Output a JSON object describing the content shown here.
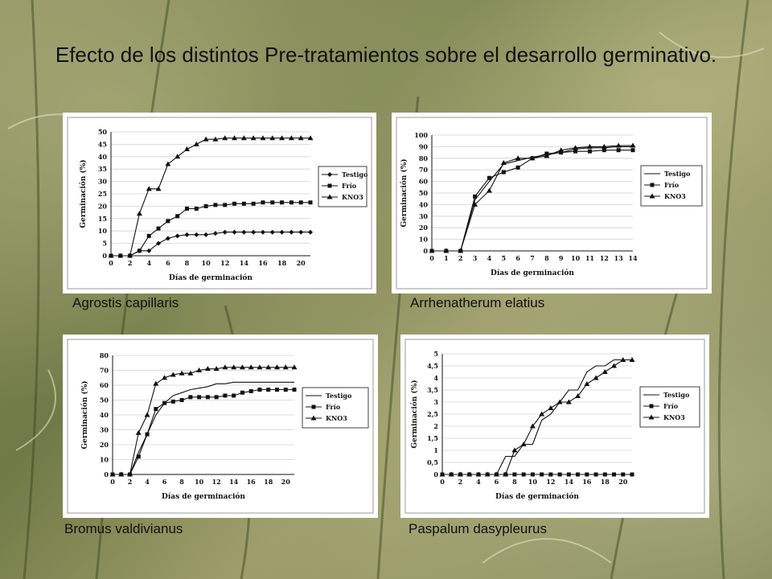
{
  "title": "Efecto de los distintos Pre-tratamientos sobre el desarrollo germinativo.",
  "colors": {
    "ink": "#111111",
    "grid": "#d0d0d0"
  },
  "chart_data": [
    {
      "type": "line",
      "caption": "Agrostis capillaris",
      "xlabel": "Días de germinación",
      "ylabel": "Germinación (%)",
      "xlim": [
        0,
        21
      ],
      "ylim": [
        0,
        50
      ],
      "xticks": [
        "0",
        "2",
        "4",
        "6",
        "8",
        "10",
        "12",
        "14",
        "16",
        "18",
        "20"
      ],
      "xtick_values": [
        0,
        2,
        4,
        6,
        8,
        10,
        12,
        14,
        16,
        18,
        20
      ],
      "yticks": [
        "0",
        "5",
        "10",
        "15",
        "20",
        "25",
        "30",
        "35",
        "40",
        "45",
        "50"
      ],
      "ytick_values": [
        0,
        5,
        10,
        15,
        20,
        25,
        30,
        35,
        40,
        45,
        50
      ],
      "grid": true,
      "legend": "right",
      "series": [
        {
          "name": "Testigo",
          "marker": "diamond",
          "x": [
            0,
            1,
            2,
            3,
            4,
            5,
            6,
            7,
            8,
            9,
            10,
            11,
            12,
            13,
            14,
            15,
            16,
            17,
            18,
            19,
            20,
            21
          ],
          "y": [
            0,
            0,
            0,
            2,
            2,
            5,
            7,
            8,
            8.5,
            8.5,
            8.5,
            9,
            9.5,
            9.5,
            9.5,
            9.5,
            9.5,
            9.5,
            9.5,
            9.5,
            9.5,
            9.5
          ]
        },
        {
          "name": "Frío",
          "marker": "square",
          "x": [
            0,
            1,
            2,
            3,
            4,
            5,
            6,
            7,
            8,
            9,
            10,
            11,
            12,
            13,
            14,
            15,
            16,
            17,
            18,
            19,
            20,
            21
          ],
          "y": [
            0,
            0,
            0,
            2,
            8,
            11,
            14,
            16,
            19,
            19,
            20,
            20.5,
            20.5,
            21,
            21,
            21,
            21.5,
            21.5,
            21.5,
            21.5,
            21.5,
            21.5
          ]
        },
        {
          "name": "KNO3",
          "marker": "triangle",
          "x": [
            0,
            1,
            2,
            3,
            4,
            5,
            6,
            7,
            8,
            9,
            10,
            11,
            12,
            13,
            14,
            15,
            16,
            17,
            18,
            19,
            20,
            21
          ],
          "y": [
            0,
            0,
            0,
            17,
            27,
            27,
            37,
            40,
            43,
            45,
            47,
            47,
            47.5,
            47.5,
            47.5,
            47.5,
            47.5,
            47.5,
            47.5,
            47.5,
            47.5,
            47.5
          ]
        }
      ]
    },
    {
      "type": "line",
      "caption": "Arrhenatherum elatius",
      "xlabel": "Días de germinación",
      "ylabel": "Germinación (%)",
      "xlim": [
        0,
        14
      ],
      "ylim": [
        0,
        100
      ],
      "xticks": [
        "0",
        "1",
        "2",
        "3",
        "4",
        "5",
        "6",
        "7",
        "8",
        "9",
        "10",
        "11",
        "12",
        "13",
        "14"
      ],
      "xtick_values": [
        0,
        1,
        2,
        3,
        4,
        5,
        6,
        7,
        8,
        9,
        10,
        11,
        12,
        13,
        14
      ],
      "yticks": [
        "0",
        "10",
        "20",
        "30",
        "40",
        "50",
        "60",
        "70",
        "80",
        "90",
        "100"
      ],
      "ytick_values": [
        0,
        10,
        20,
        30,
        40,
        50,
        60,
        70,
        80,
        90,
        100
      ],
      "grid": true,
      "legend": "right",
      "series": [
        {
          "name": "Testigo",
          "marker": "none",
          "x": [
            0,
            1,
            2,
            3,
            4,
            5,
            6,
            7,
            8,
            9,
            10,
            11,
            12,
            13,
            14
          ],
          "y": [
            0,
            0,
            0,
            44,
            60,
            75,
            78,
            81,
            83,
            85,
            88,
            89,
            89,
            90,
            90
          ]
        },
        {
          "name": "Frío",
          "marker": "square",
          "x": [
            0,
            1,
            2,
            3,
            4,
            5,
            6,
            7,
            8,
            9,
            10,
            11,
            12,
            13,
            14
          ],
          "y": [
            0,
            0,
            0,
            47,
            63,
            68,
            72,
            80,
            84,
            85,
            86,
            86,
            87,
            87,
            87
          ]
        },
        {
          "name": "KNO3",
          "marker": "triangle",
          "x": [
            0,
            1,
            2,
            3,
            4,
            5,
            6,
            7,
            8,
            9,
            10,
            11,
            12,
            13,
            14
          ],
          "y": [
            0,
            0,
            0,
            40,
            52,
            76,
            80,
            80,
            82,
            87,
            89,
            90,
            90,
            91,
            91
          ]
        }
      ]
    },
    {
      "type": "line",
      "caption": "Bromus valdivianus",
      "xlabel": "Días de germinación",
      "ylabel": "Germinación (%)",
      "xlim": [
        0,
        21
      ],
      "ylim": [
        0,
        80
      ],
      "xticks": [
        "0",
        "2",
        "4",
        "6",
        "8",
        "10",
        "12",
        "14",
        "16",
        "18",
        "20"
      ],
      "xtick_values": [
        0,
        2,
        4,
        6,
        8,
        10,
        12,
        14,
        16,
        18,
        20
      ],
      "yticks": [
        "0",
        "10",
        "20",
        "30",
        "40",
        "50",
        "60",
        "70",
        "80"
      ],
      "ytick_values": [
        0,
        10,
        20,
        30,
        40,
        50,
        60,
        70,
        80
      ],
      "grid": true,
      "legend": "right",
      "series": [
        {
          "name": "Testigo",
          "marker": "none",
          "x": [
            0,
            1,
            2,
            3,
            4,
            5,
            6,
            7,
            8,
            9,
            10,
            11,
            12,
            13,
            14,
            15,
            16,
            17,
            18,
            19,
            20,
            21
          ],
          "y": [
            0,
            0,
            0,
            15,
            27,
            40,
            48,
            53,
            55,
            57,
            58,
            59,
            61,
            61,
            62,
            62,
            62,
            62,
            62,
            62,
            62,
            62
          ]
        },
        {
          "name": "Frío",
          "marker": "square",
          "x": [
            0,
            1,
            2,
            3,
            4,
            5,
            6,
            7,
            8,
            9,
            10,
            11,
            12,
            13,
            14,
            15,
            16,
            17,
            18,
            19,
            20,
            21
          ],
          "y": [
            0,
            0,
            0,
            12,
            27,
            44,
            48,
            49,
            50,
            52,
            52,
            52,
            52,
            53,
            53,
            55,
            56,
            57,
            57,
            57,
            57,
            57
          ]
        },
        {
          "name": "KNO3",
          "marker": "triangle",
          "x": [
            0,
            1,
            2,
            3,
            4,
            5,
            6,
            7,
            8,
            9,
            10,
            11,
            12,
            13,
            14,
            15,
            16,
            17,
            18,
            19,
            20,
            21
          ],
          "y": [
            0,
            0,
            0,
            28,
            40,
            61,
            65,
            67,
            68,
            68,
            70,
            71,
            71,
            72,
            72,
            72,
            72,
            72,
            72,
            72,
            72,
            72
          ]
        }
      ]
    },
    {
      "type": "line",
      "caption": "Paspalum dasypleurus",
      "xlabel": "Días de germinación",
      "ylabel": "Germinación (%)",
      "xlim": [
        0,
        21
      ],
      "ylim": [
        0,
        5
      ],
      "xticks": [
        "0",
        "2",
        "4",
        "6",
        "8",
        "10",
        "12",
        "14",
        "16",
        "18",
        "20"
      ],
      "xtick_values": [
        0,
        2,
        4,
        6,
        8,
        10,
        12,
        14,
        16,
        18,
        20
      ],
      "yticks": [
        "0",
        "0,5",
        "1",
        "1,5",
        "2",
        "2,5",
        "3",
        "3,5",
        "4",
        "4,5",
        "5"
      ],
      "ytick_values": [
        0,
        0.5,
        1,
        1.5,
        2,
        2.5,
        3,
        3.5,
        4,
        4.5,
        5
      ],
      "grid": true,
      "legend": "right",
      "series": [
        {
          "name": "Testigo",
          "marker": "none",
          "x": [
            0,
            1,
            2,
            3,
            4,
            5,
            6,
            7,
            8,
            9,
            10,
            11,
            12,
            13,
            14,
            15,
            16,
            17,
            18,
            19,
            20,
            21
          ],
          "y": [
            0,
            0,
            0,
            0,
            0,
            0,
            0,
            0.75,
            0.75,
            1.25,
            1.25,
            2.25,
            2.5,
            3,
            3.5,
            3.5,
            4.25,
            4.5,
            4.5,
            4.75,
            4.75,
            4.75
          ]
        },
        {
          "name": "Frío",
          "marker": "square",
          "x": [
            0,
            1,
            2,
            3,
            4,
            5,
            6,
            7,
            8,
            9,
            10,
            11,
            12,
            13,
            14,
            15,
            16,
            17,
            18,
            19,
            20,
            21
          ],
          "y": [
            0,
            0,
            0,
            0,
            0,
            0,
            0,
            0,
            0,
            0,
            0,
            0,
            0,
            0,
            0,
            0,
            0,
            0,
            0,
            0,
            0,
            0
          ]
        },
        {
          "name": "KNO3",
          "marker": "triangle",
          "x": [
            0,
            1,
            2,
            3,
            4,
            5,
            6,
            7,
            8,
            9,
            10,
            11,
            12,
            13,
            14,
            15,
            16,
            17,
            18,
            19,
            20,
            21
          ],
          "y": [
            0,
            0,
            0,
            0,
            0,
            0,
            0,
            0,
            1,
            1.25,
            2,
            2.5,
            2.75,
            3,
            3,
            3.25,
            3.75,
            4,
            4.25,
            4.5,
            4.75,
            4.75
          ]
        }
      ]
    }
  ]
}
